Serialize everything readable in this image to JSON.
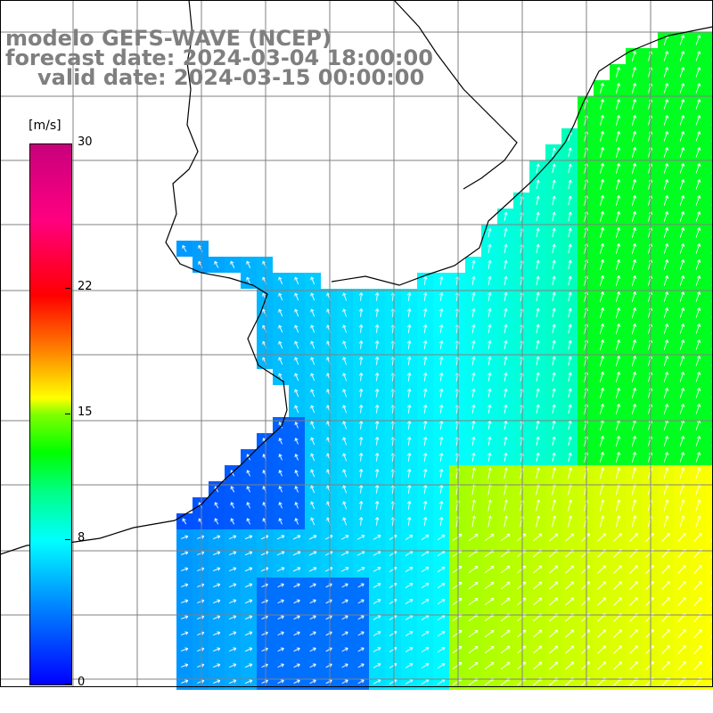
{
  "title": {
    "line1": "modelo GEFS-WAVE (NCEP)",
    "line2": "forecast date: 2024-03-04 18:00:00",
    "line3": "valid date: 2024-03-15 00:00:00"
  },
  "colorbar": {
    "unit": "[m/s]",
    "ticks": [
      {
        "label": "30",
        "value": 30
      },
      {
        "label": "22",
        "value": 22
      },
      {
        "label": "15",
        "value": 15
      },
      {
        "label": "8",
        "value": 8
      },
      {
        "label": "0",
        "value": 0
      }
    ],
    "min": 0,
    "max": 30,
    "colors": [
      "#0000ff",
      "#0080ff",
      "#00ffff",
      "#00ff80",
      "#00ff00",
      "#ffff00",
      "#ff8000",
      "#ff0000",
      "#c8007c"
    ]
  },
  "map": {
    "land_color": "#ffffff",
    "grid_color": "#808080",
    "coast_color": "#000000",
    "arrow_color": "#ffffff",
    "field_regions": [
      {
        "region": "southwest-shelf",
        "speed": 2
      },
      {
        "region": "central",
        "speed": 5
      },
      {
        "region": "northeast",
        "speed": 11
      },
      {
        "region": "southeast",
        "speed": 13
      }
    ]
  }
}
